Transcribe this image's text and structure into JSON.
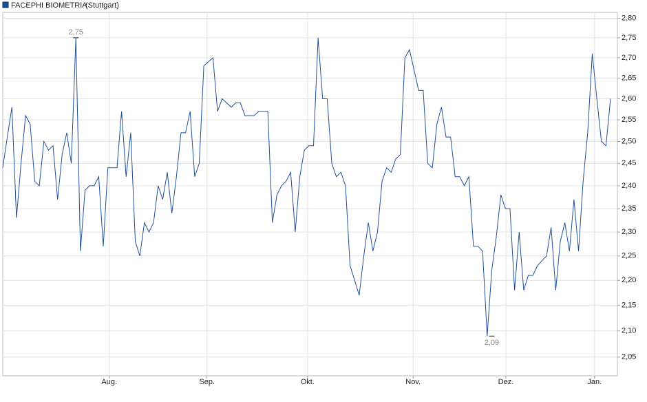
{
  "chart_data": {
    "type": "line",
    "title": "FACEPHI BIOMETRIA",
    "subtitle": "(Stuttgart)",
    "log_y": true,
    "grid": true,
    "xlim": [
      0,
      134.5
    ],
    "xticks": [
      {
        "value": 23.3,
        "label": "Aug."
      },
      {
        "value": 44.7,
        "label": "Sep."
      },
      {
        "value": 66.7,
        "label": "Okt."
      },
      {
        "value": 89.8,
        "label": "Nov."
      },
      {
        "value": 110.1,
        "label": "Dez."
      },
      {
        "value": 129.5,
        "label": "Jan."
      }
    ],
    "ylim": [
      2.015,
      2.815
    ],
    "yticks": [
      {
        "value": 2.8,
        "label": "2,80"
      },
      {
        "value": 2.75,
        "label": "2,75"
      },
      {
        "value": 2.7,
        "label": "2,70"
      },
      {
        "value": 2.65,
        "label": "2,65"
      },
      {
        "value": 2.6,
        "label": "2,60"
      },
      {
        "value": 2.55,
        "label": "2,55"
      },
      {
        "value": 2.5,
        "label": "2,50"
      },
      {
        "value": 2.45,
        "label": "2,45"
      },
      {
        "value": 2.4,
        "label": "2,40"
      },
      {
        "value": 2.35,
        "label": "2,35"
      },
      {
        "value": 2.3,
        "label": "2,30"
      },
      {
        "value": 2.25,
        "label": "2,25"
      },
      {
        "value": 2.2,
        "label": "2,20"
      },
      {
        "value": 2.15,
        "label": "2,15"
      },
      {
        "value": 2.1,
        "label": "2,10"
      },
      {
        "value": 2.05,
        "label": "2,05"
      }
    ],
    "series": [
      {
        "name": "FACEPHI BIOMETRIA",
        "color": "#1c4f9c",
        "values": [
          2.44,
          2.51,
          2.58,
          2.33,
          2.45,
          2.56,
          2.54,
          2.41,
          2.4,
          2.5,
          2.48,
          2.49,
          2.37,
          2.47,
          2.52,
          2.45,
          2.75,
          2.26,
          2.39,
          2.4,
          2.4,
          2.42,
          2.27,
          2.44,
          2.44,
          2.44,
          2.57,
          2.42,
          2.52,
          2.28,
          2.25,
          2.32,
          2.3,
          2.32,
          2.4,
          2.37,
          2.43,
          2.34,
          2.42,
          2.52,
          2.52,
          2.57,
          2.42,
          2.45,
          2.68,
          2.69,
          2.7,
          2.57,
          2.6,
          2.59,
          2.58,
          2.59,
          2.59,
          2.56,
          2.56,
          2.56,
          2.57,
          2.57,
          2.57,
          2.32,
          2.38,
          2.4,
          2.41,
          2.43,
          2.3,
          2.42,
          2.48,
          2.49,
          2.49,
          2.75,
          2.6,
          2.6,
          2.45,
          2.42,
          2.43,
          2.4,
          2.23,
          2.2,
          2.17,
          2.25,
          2.32,
          2.26,
          2.3,
          2.41,
          2.44,
          2.43,
          2.46,
          2.47,
          2.7,
          2.72,
          2.67,
          2.62,
          2.62,
          2.45,
          2.44,
          2.54,
          2.58,
          2.51,
          2.51,
          2.42,
          2.42,
          2.4,
          2.42,
          2.27,
          2.27,
          2.26,
          2.09,
          2.22,
          2.29,
          2.38,
          2.35,
          2.35,
          2.18,
          2.3,
          2.18,
          2.21,
          2.21,
          2.23,
          2.24,
          2.25,
          2.31,
          2.18,
          2.28,
          2.32,
          2.26,
          2.37,
          2.26,
          2.41,
          2.52,
          2.71,
          2.6,
          2.5,
          2.49,
          2.6
        ]
      }
    ],
    "annotations": [
      {
        "x": 16,
        "y": 2.75,
        "label": "2,75"
      },
      {
        "x": 107,
        "y": 2.09,
        "label": "2,09"
      }
    ]
  }
}
